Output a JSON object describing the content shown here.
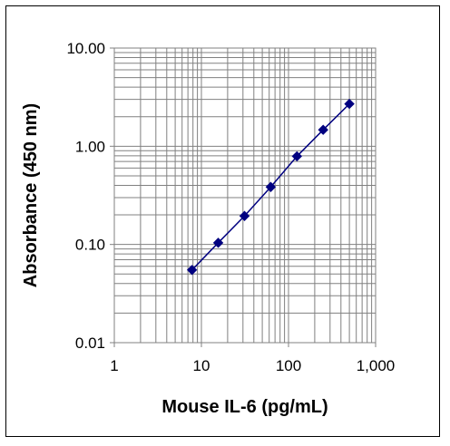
{
  "chart_data": {
    "type": "scatter",
    "title": "",
    "xlabel": "Mouse IL-6 (pg/mL)",
    "ylabel": "Absorbance (450 nm)",
    "x_scale": "log",
    "y_scale": "log",
    "xlim": [
      1,
      1000
    ],
    "ylim": [
      0.01,
      10
    ],
    "x_ticks": [
      {
        "value": 1,
        "label": "1"
      },
      {
        "value": 10,
        "label": "10"
      },
      {
        "value": 100,
        "label": "100"
      },
      {
        "value": 1000,
        "label": "1,000"
      }
    ],
    "y_ticks": [
      {
        "value": 0.01,
        "label": "0.01"
      },
      {
        "value": 0.1,
        "label": "0.10"
      },
      {
        "value": 1,
        "label": "1.00"
      },
      {
        "value": 10,
        "label": "10.00"
      }
    ],
    "grid": true,
    "legend": "none",
    "series": [
      {
        "color": "#000080",
        "marker": "diamond",
        "connected": true,
        "x": [
          7.8,
          15.6,
          31.25,
          62.5,
          125,
          250,
          500
        ],
        "y": [
          0.055,
          0.104,
          0.195,
          0.385,
          0.79,
          1.47,
          2.7
        ]
      }
    ]
  }
}
